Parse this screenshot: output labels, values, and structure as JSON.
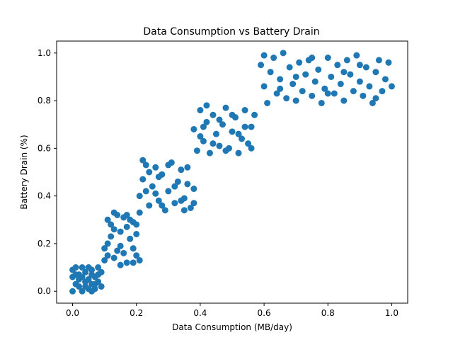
{
  "chart_data": {
    "type": "scatter",
    "title": "Data Consumption vs Battery Drain",
    "xlabel": "Data Consumption (MB/day)",
    "ylabel": "Battery Drain (%)",
    "xlim": [
      -0.05,
      1.05
    ],
    "ylim": [
      -0.05,
      1.05
    ],
    "xticks": [
      "0.0",
      "0.2",
      "0.4",
      "0.6",
      "0.8",
      "1.0"
    ],
    "yticks": [
      "0.0",
      "0.2",
      "0.4",
      "0.6",
      "0.8",
      "1.0"
    ],
    "grid": false,
    "marker_color": "#1f77b4",
    "series": [
      {
        "points": [
          [
            0.0,
            0.0
          ],
          [
            0.01,
            0.03
          ],
          [
            0.02,
            0.07
          ],
          [
            0.03,
            0.1
          ],
          [
            0.04,
            0.02
          ],
          [
            0.05,
            0.05
          ],
          [
            0.06,
            0.09
          ],
          [
            0.07,
            0.01
          ],
          [
            0.08,
            0.04
          ],
          [
            0.09,
            0.08
          ],
          [
            0.01,
            0.1
          ],
          [
            0.03,
            0.0
          ],
          [
            0.05,
            0.1
          ],
          [
            0.07,
            0.06
          ],
          [
            0.02,
            0.02
          ],
          [
            0.04,
            0.08
          ],
          [
            0.06,
            0.03
          ],
          [
            0.08,
            0.1
          ],
          [
            0.0,
            0.06
          ],
          [
            0.09,
            0.02
          ],
          [
            0.02,
            0.05
          ],
          [
            0.04,
            0.04
          ],
          [
            0.06,
            0.07
          ],
          [
            0.03,
            0.06
          ],
          [
            0.07,
            0.03
          ],
          [
            0.05,
            0.01
          ],
          [
            0.01,
            0.07
          ],
          [
            0.08,
            0.07
          ],
          [
            0.0,
            0.09
          ],
          [
            0.06,
            0.0
          ],
          [
            0.1,
            0.13
          ],
          [
            0.11,
            0.2
          ],
          [
            0.12,
            0.28
          ],
          [
            0.13,
            0.33
          ],
          [
            0.14,
            0.17
          ],
          [
            0.15,
            0.25
          ],
          [
            0.16,
            0.31
          ],
          [
            0.17,
            0.12
          ],
          [
            0.18,
            0.22
          ],
          [
            0.19,
            0.29
          ],
          [
            0.2,
            0.15
          ],
          [
            0.21,
            0.33
          ],
          [
            0.11,
            0.3
          ],
          [
            0.13,
            0.14
          ],
          [
            0.15,
            0.19
          ],
          [
            0.17,
            0.27
          ],
          [
            0.19,
            0.18
          ],
          [
            0.21,
            0.13
          ],
          [
            0.12,
            0.23
          ],
          [
            0.14,
            0.32
          ],
          [
            0.16,
            0.16
          ],
          [
            0.18,
            0.3
          ],
          [
            0.2,
            0.24
          ],
          [
            0.1,
            0.18
          ],
          [
            0.13,
            0.26
          ],
          [
            0.17,
            0.32
          ],
          [
            0.19,
            0.12
          ],
          [
            0.15,
            0.11
          ],
          [
            0.2,
            0.28
          ],
          [
            0.11,
            0.15
          ],
          [
            0.21,
            0.4
          ],
          [
            0.22,
            0.47
          ],
          [
            0.23,
            0.53
          ],
          [
            0.24,
            0.36
          ],
          [
            0.25,
            0.44
          ],
          [
            0.26,
            0.52
          ],
          [
            0.27,
            0.38
          ],
          [
            0.28,
            0.49
          ],
          [
            0.29,
            0.34
          ],
          [
            0.3,
            0.42
          ],
          [
            0.31,
            0.54
          ],
          [
            0.32,
            0.37
          ],
          [
            0.33,
            0.46
          ],
          [
            0.34,
            0.51
          ],
          [
            0.35,
            0.39
          ],
          [
            0.36,
            0.45
          ],
          [
            0.37,
            0.35
          ],
          [
            0.38,
            0.43
          ],
          [
            0.22,
            0.55
          ],
          [
            0.24,
            0.5
          ],
          [
            0.26,
            0.41
          ],
          [
            0.28,
            0.36
          ],
          [
            0.3,
            0.53
          ],
          [
            0.32,
            0.44
          ],
          [
            0.34,
            0.38
          ],
          [
            0.36,
            0.52
          ],
          [
            0.38,
            0.37
          ],
          [
            0.23,
            0.42
          ],
          [
            0.27,
            0.48
          ],
          [
            0.35,
            0.34
          ],
          [
            0.38,
            0.68
          ],
          [
            0.39,
            0.59
          ],
          [
            0.4,
            0.76
          ],
          [
            0.41,
            0.63
          ],
          [
            0.42,
            0.71
          ],
          [
            0.43,
            0.58
          ],
          [
            0.44,
            0.74
          ],
          [
            0.45,
            0.66
          ],
          [
            0.46,
            0.61
          ],
          [
            0.47,
            0.7
          ],
          [
            0.48,
            0.77
          ],
          [
            0.49,
            0.6
          ],
          [
            0.5,
            0.67
          ],
          [
            0.51,
            0.73
          ],
          [
            0.52,
            0.58
          ],
          [
            0.53,
            0.64
          ],
          [
            0.54,
            0.76
          ],
          [
            0.55,
            0.62
          ],
          [
            0.56,
            0.69
          ],
          [
            0.57,
            0.74
          ],
          [
            0.4,
            0.65
          ],
          [
            0.42,
            0.78
          ],
          [
            0.44,
            0.62
          ],
          [
            0.46,
            0.72
          ],
          [
            0.48,
            0.59
          ],
          [
            0.5,
            0.74
          ],
          [
            0.52,
            0.66
          ],
          [
            0.54,
            0.69
          ],
          [
            0.56,
            0.6
          ],
          [
            0.41,
            0.69
          ],
          [
            0.59,
            0.95
          ],
          [
            0.6,
            0.86
          ],
          [
            0.61,
            0.79
          ],
          [
            0.62,
            0.92
          ],
          [
            0.63,
            0.98
          ],
          [
            0.64,
            0.83
          ],
          [
            0.65,
            0.89
          ],
          [
            0.66,
            1.0
          ],
          [
            0.67,
            0.81
          ],
          [
            0.68,
            0.94
          ],
          [
            0.69,
            0.87
          ],
          [
            0.7,
            0.8
          ],
          [
            0.71,
            0.96
          ],
          [
            0.72,
            0.84
          ],
          [
            0.73,
            0.91
          ],
          [
            0.74,
            0.97
          ],
          [
            0.75,
            0.82
          ],
          [
            0.76,
            0.88
          ],
          [
            0.77,
            0.93
          ],
          [
            0.78,
            0.79
          ],
          [
            0.79,
            0.85
          ],
          [
            0.8,
            0.98
          ],
          [
            0.81,
            0.9
          ],
          [
            0.82,
            0.83
          ],
          [
            0.83,
            0.95
          ],
          [
            0.84,
            0.87
          ],
          [
            0.85,
            0.8
          ],
          [
            0.86,
            0.97
          ],
          [
            0.87,
            0.91
          ],
          [
            0.88,
            0.84
          ],
          [
            0.89,
            0.99
          ],
          [
            0.9,
            0.88
          ],
          [
            0.91,
            0.82
          ],
          [
            0.92,
            0.94
          ],
          [
            0.93,
            0.86
          ],
          [
            0.94,
            0.79
          ],
          [
            0.95,
            0.92
          ],
          [
            0.96,
            0.97
          ],
          [
            0.97,
            0.84
          ],
          [
            0.98,
            0.89
          ],
          [
            0.99,
            0.96
          ],
          [
            1.0,
            0.86
          ],
          [
            0.6,
            0.99
          ],
          [
            0.7,
            0.9
          ],
          [
            0.8,
            0.83
          ],
          [
            0.9,
            0.95
          ],
          [
            0.75,
            0.98
          ],
          [
            0.85,
            0.92
          ],
          [
            0.65,
            0.85
          ],
          [
            0.95,
            0.81
          ]
        ]
      }
    ]
  }
}
